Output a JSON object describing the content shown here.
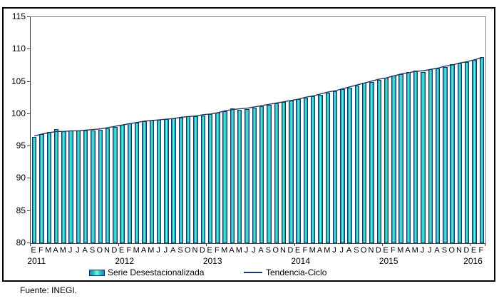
{
  "figure": {
    "source_note": "Fuente: INEGI."
  },
  "legend": {
    "bar_label": "Serie Desestacionalizada",
    "line_label": "Tendencia-Ciclo"
  },
  "colors": {
    "bar_edge": "#17375e",
    "bar_fill_center": "#7deede",
    "bar_fill_mid": "#1ed4c6",
    "bar_fill_edge": "#2e78b8",
    "trend_line": "#1f3864",
    "axis": "#404040"
  },
  "chart_data": {
    "type": "bar",
    "title": "",
    "xlabel": "",
    "ylabel": "",
    "ylim": [
      80,
      115
    ],
    "yticks": [
      115,
      110,
      105,
      100,
      95,
      90,
      85,
      80
    ],
    "grid": false,
    "legend_position": "bottom",
    "month_letters_per_year": [
      "E",
      "F",
      "M",
      "A",
      "M",
      "J",
      "J",
      "A",
      "S",
      "O",
      "N",
      "D"
    ],
    "year_groups": [
      {
        "label": "2011",
        "start_index": 0,
        "n_months": 12
      },
      {
        "label": "2012",
        "start_index": 12,
        "n_months": 12
      },
      {
        "label": "2013",
        "start_index": 24,
        "n_months": 12
      },
      {
        "label": "2014",
        "start_index": 36,
        "n_months": 12
      },
      {
        "label": "2015",
        "start_index": 48,
        "n_months": 12
      },
      {
        "label": "2016",
        "start_index": 60,
        "n_months": 2
      }
    ],
    "categories": [
      "2011-E",
      "2011-F",
      "2011-M",
      "2011-A",
      "2011-M",
      "2011-J",
      "2011-J",
      "2011-A",
      "2011-S",
      "2011-O",
      "2011-N",
      "2011-D",
      "2012-E",
      "2012-F",
      "2012-M",
      "2012-A",
      "2012-M",
      "2012-J",
      "2012-J",
      "2012-A",
      "2012-S",
      "2012-O",
      "2012-N",
      "2012-D",
      "2013-E",
      "2013-F",
      "2013-M",
      "2013-A",
      "2013-M",
      "2013-J",
      "2013-J",
      "2013-A",
      "2013-S",
      "2013-O",
      "2013-N",
      "2013-D",
      "2014-E",
      "2014-F",
      "2014-M",
      "2014-A",
      "2014-M",
      "2014-J",
      "2014-J",
      "2014-A",
      "2014-S",
      "2014-O",
      "2014-N",
      "2014-D",
      "2015-E",
      "2015-F",
      "2015-M",
      "2015-A",
      "2015-M",
      "2015-J",
      "2015-J",
      "2015-A",
      "2015-S",
      "2015-O",
      "2015-N",
      "2015-D",
      "2016-E",
      "2016-F"
    ],
    "series": [
      {
        "name": "Serie Desestacionalizada",
        "type": "bar",
        "values": [
          96.4,
          96.9,
          97.2,
          97.7,
          97.3,
          97.4,
          97.4,
          97.5,
          97.5,
          97.6,
          97.8,
          98.0,
          98.3,
          98.5,
          98.7,
          98.9,
          99.0,
          99.1,
          99.2,
          99.3,
          99.4,
          99.6,
          99.7,
          99.8,
          100.0,
          100.2,
          100.4,
          100.9,
          100.7,
          100.8,
          101.0,
          101.2,
          101.4,
          101.6,
          101.9,
          102.1,
          102.3,
          102.5,
          102.8,
          103.0,
          103.3,
          103.5,
          103.8,
          104.1,
          104.4,
          104.8,
          105.0,
          105.3,
          105.6,
          105.9,
          106.2,
          106.5,
          106.7,
          106.5,
          106.9,
          107.1,
          107.3,
          107.7,
          107.8,
          108.1,
          108.4,
          108.8
        ]
      },
      {
        "name": "Tendencia-Ciclo",
        "type": "line",
        "values": [
          96.6,
          96.9,
          97.1,
          97.3,
          97.3,
          97.4,
          97.4,
          97.5,
          97.6,
          97.7,
          97.9,
          98.1,
          98.3,
          98.5,
          98.7,
          98.9,
          99.0,
          99.1,
          99.2,
          99.3,
          99.5,
          99.6,
          99.7,
          99.9,
          100.0,
          100.2,
          100.5,
          100.7,
          100.8,
          100.9,
          101.1,
          101.3,
          101.5,
          101.7,
          101.9,
          102.1,
          102.3,
          102.6,
          102.8,
          103.1,
          103.4,
          103.6,
          103.9,
          104.2,
          104.5,
          104.8,
          105.1,
          105.4,
          105.6,
          105.9,
          106.2,
          106.4,
          106.6,
          106.7,
          106.9,
          107.1,
          107.4,
          107.6,
          107.9,
          108.1,
          108.4,
          108.7
        ]
      }
    ]
  }
}
